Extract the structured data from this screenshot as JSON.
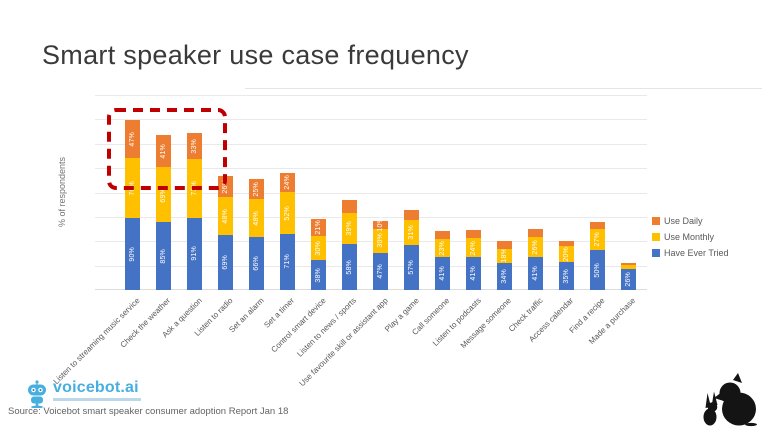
{
  "page": {
    "title": "Smart speaker use case frequency",
    "source_note": "Source: Voicebot smart speaker consumer adoption Report Jan 18",
    "logo_text": "voicebot.ai"
  },
  "icons": {
    "logo": "voicebot-robot-icon",
    "mascot": "bear-and-rabbit-silhouette-icon"
  },
  "colors": {
    "use_daily": "#ED7D31",
    "use_monthly": "#FFC000",
    "have_ever_tried": "#4472C4",
    "highlight_box": "#C00000",
    "logo_blue": "#47AFDF"
  },
  "legend": [
    {
      "label": "Use Daily",
      "color": "#ED7D31"
    },
    {
      "label": "Use Monthly",
      "color": "#FFC000"
    },
    {
      "label": "Have Ever Tried",
      "color": "#4472C4"
    }
  ],
  "chart_data": {
    "type": "bar",
    "stacked": true,
    "title": "Smart speaker use case frequency",
    "ylabel": "% of respondents",
    "xlabel": "",
    "ylim": [
      0,
      245
    ],
    "grid": true,
    "legend_position": "right",
    "categories": [
      "Listen to streaming music service",
      "Check the weather",
      "Ask a question",
      "Listen to radio",
      "Set an alarm",
      "Set a timer",
      "Control smart device",
      "Listen to news / sports",
      "Use favourite skill or assistant app",
      "Play a game",
      "Call someone",
      "Listen to podcasts",
      "Message someone",
      "Check traffic",
      "Access calendar",
      "Find a recipe",
      "Made a purchase"
    ],
    "series": [
      {
        "name": "Have Ever Tried",
        "color": "#4472C4",
        "values": [
          90,
          85,
          91,
          69,
          66,
          71,
          38,
          58,
          47,
          57,
          41,
          41,
          34,
          41,
          35,
          50,
          26
        ],
        "labels": [
          "90%",
          "85%",
          "91%",
          "69%",
          "66%",
          "71%",
          "38%",
          "58%",
          "47%",
          "57%",
          "41%",
          "41%",
          "34%",
          "41%",
          "35%",
          "50%",
          "26%"
        ]
      },
      {
        "name": "Use Monthly",
        "color": "#FFC000",
        "values": [
          76,
          69,
          73,
          48,
          48,
          52,
          30,
          39,
          30,
          31,
          23,
          24,
          18,
          26,
          20,
          27,
          6
        ],
        "labels": [
          "76%",
          "69%",
          "73%",
          "48%",
          "48%",
          "52%",
          "30%",
          "39%",
          "30%",
          "31%",
          "23%",
          "24%",
          "18%",
          "26%",
          "20%",
          "27%",
          ""
        ]
      },
      {
        "name": "Use Daily",
        "color": "#ED7D31",
        "values": [
          47,
          41,
          33,
          26,
          25,
          24,
          21,
          16,
          10,
          12,
          10,
          10,
          9,
          10,
          7,
          9,
          2
        ],
        "labels": [
          "47%",
          "41%",
          "33%",
          "26%",
          "25%",
          "24%",
          "21%",
          "",
          "10%",
          "",
          "",
          "",
          "",
          "",
          "",
          "",
          ""
        ]
      }
    ],
    "annotation": {
      "type": "dashed-rectangle",
      "color": "#C00000",
      "around_categories": [
        "Listen to streaming music service",
        "Check the weather",
        "Ask a question"
      ],
      "around_series": "Use Daily"
    }
  }
}
